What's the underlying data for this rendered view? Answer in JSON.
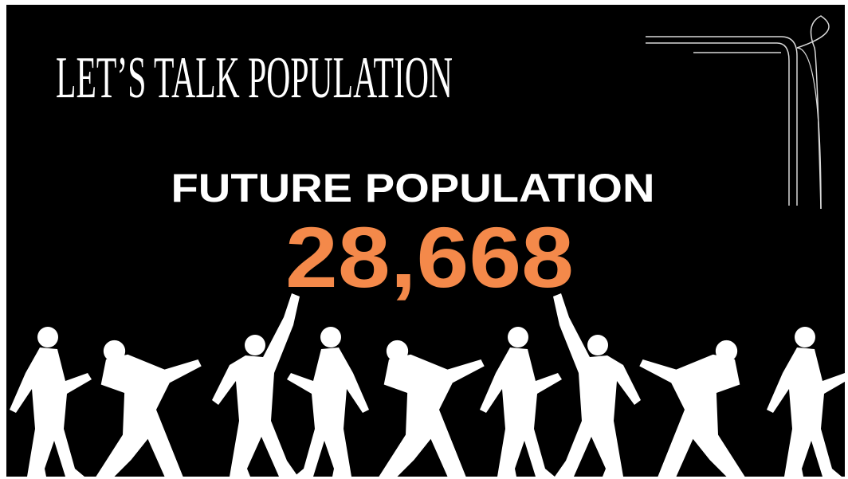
{
  "slide": {
    "title": "LET’S TALK POPULATION",
    "heading": "FUTURE POPULATION",
    "figure": "28,668"
  }
}
